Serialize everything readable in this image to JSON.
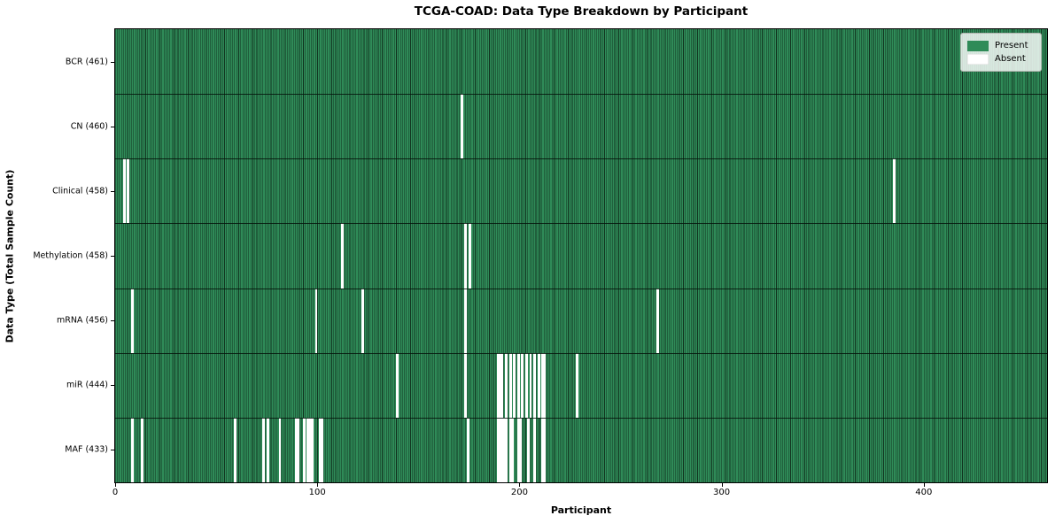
{
  "colors": {
    "present": "#2f8b58",
    "cell_edge": "#11331f",
    "absent": "#ffffff",
    "legend_bg": "#edf2ed",
    "legend_border": "#adb5ad"
  },
  "legend": {
    "present": "Present",
    "absent": "Absent"
  },
  "chart_data": {
    "type": "heatmap",
    "title": "TCGA-COAD: Data Type Breakdown by Participant",
    "xlabel": "Participant",
    "ylabel": "Data Type (Total Sample Count)",
    "x_range": [
      0,
      461
    ],
    "x_ticks": [
      0,
      100,
      200,
      300,
      400
    ],
    "n_participants": 461,
    "legend_entries": [
      "Present",
      "Absent"
    ],
    "legend_position": "upper right",
    "grid": false,
    "rows": [
      {
        "name": "BCR",
        "label": "BCR (461)",
        "present_count": 461,
        "absent_participants": []
      },
      {
        "name": "CN",
        "label": "CN (460)",
        "present_count": 460,
        "absent_participants": [
          171
        ]
      },
      {
        "name": "Clinical",
        "label": "Clinical (458)",
        "present_count": 458,
        "absent_participants": [
          4,
          6,
          385
        ]
      },
      {
        "name": "Methylation",
        "label": "Methylation (458)",
        "present_count": 458,
        "absent_participants": [
          112,
          173,
          175
        ]
      },
      {
        "name": "mRNA",
        "label": "mRNA (456)",
        "present_count": 456,
        "absent_participants": [
          8,
          99,
          122,
          173,
          268
        ]
      },
      {
        "name": "miR",
        "label": "miR (444)",
        "present_count": 444,
        "absent_participants": [
          139,
          173,
          189,
          190,
          191,
          193,
          195,
          197,
          199,
          201,
          203,
          205,
          207,
          209,
          211,
          212,
          228
        ]
      },
      {
        "name": "MAF",
        "label": "MAF (433)",
        "present_count": 433,
        "absent_participants": [
          8,
          13,
          59,
          73,
          75,
          81,
          89,
          90,
          93,
          95,
          96,
          97,
          101,
          102,
          174,
          189,
          190,
          191,
          192,
          193,
          195,
          196,
          199,
          200,
          204,
          207,
          211,
          212
        ]
      }
    ]
  }
}
